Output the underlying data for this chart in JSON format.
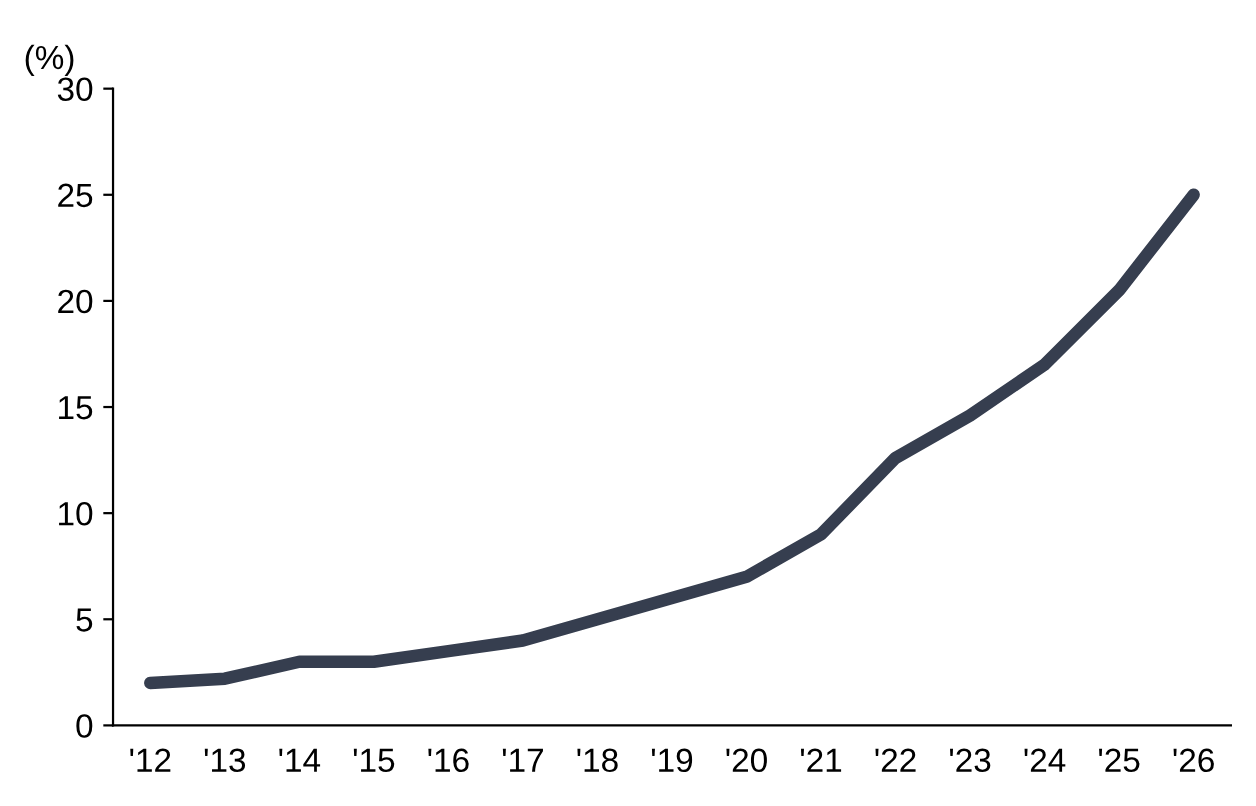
{
  "chart_data": {
    "type": "line",
    "ylabel": "(%)",
    "categories": [
      "'12",
      "'13",
      "'14",
      "'15",
      "'16",
      "'17",
      "'18",
      "'19",
      "'20",
      "'21",
      "'22",
      "'23",
      "'24",
      "'25",
      "'26"
    ],
    "series": [
      {
        "color": "#363e4f",
        "values": [
          2,
          2.2,
          3,
          3,
          3.5,
          4,
          5,
          6,
          7,
          9,
          12.6,
          14.6,
          17,
          20.5,
          25
        ]
      }
    ],
    "ylim": [
      0,
      30
    ],
    "yticks": [
      0,
      5,
      10,
      15,
      20,
      25,
      30
    ],
    "grid": false,
    "legend": false,
    "marker": "none",
    "line_style": "solid"
  }
}
